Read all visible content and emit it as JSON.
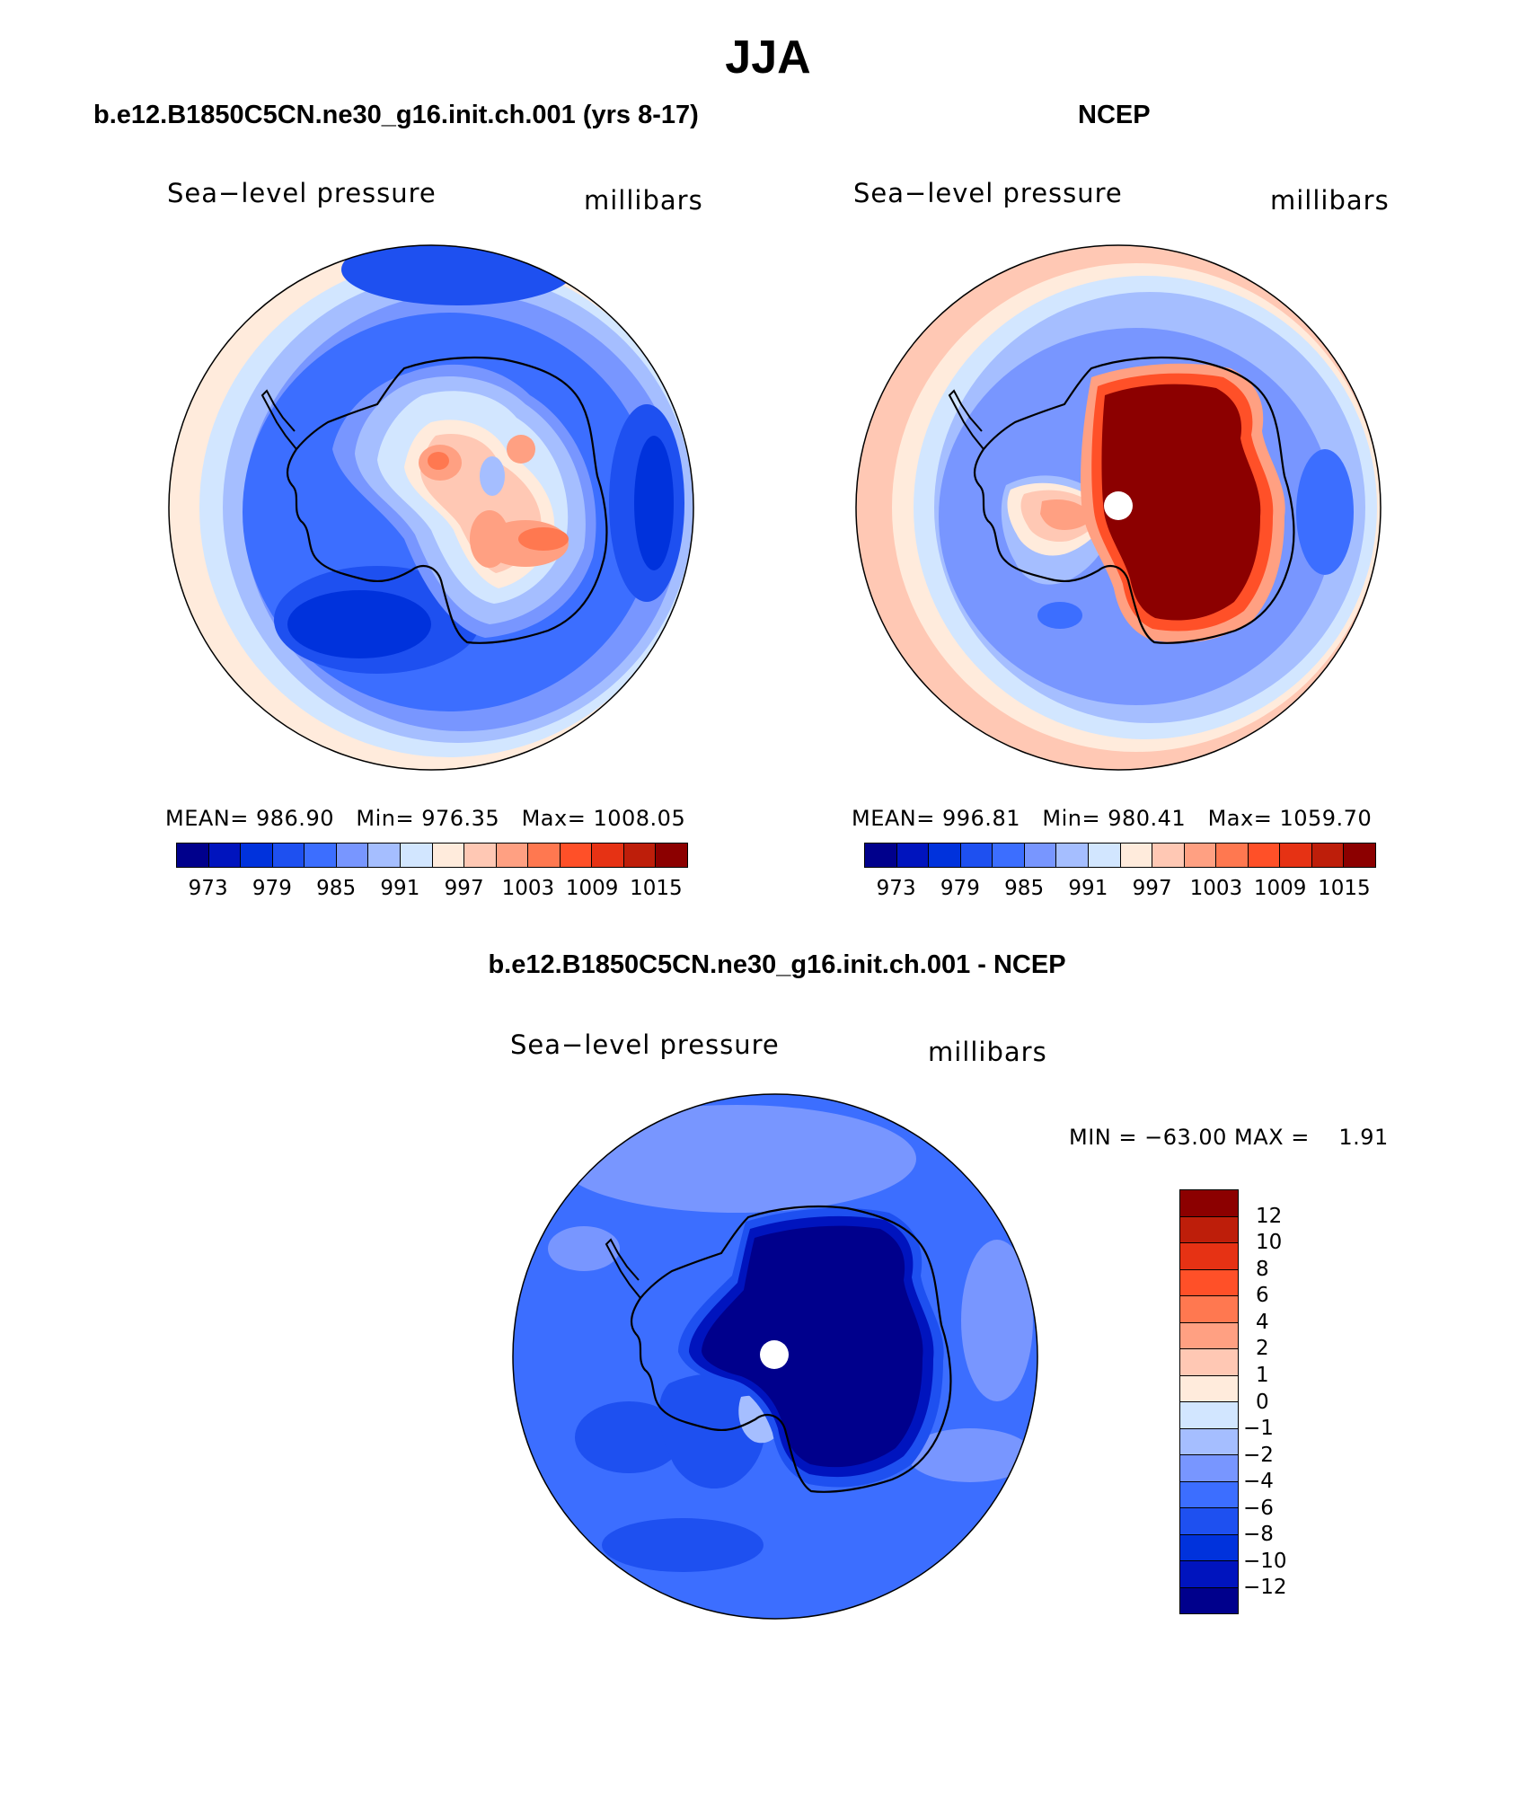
{
  "title": "JJA",
  "colors": {
    "model_ncep_scale": [
      "#00008c",
      "#0014be",
      "#0032dc",
      "#1e50f0",
      "#3c6eff",
      "#7896ff",
      "#a5beff",
      "#d2e6ff",
      "#ffebdc",
      "#ffc8b4",
      "#ffa082",
      "#ff7850",
      "#ff5028",
      "#e63214",
      "#be1e0a",
      "#8c0000"
    ],
    "diff_scale_top_to_bottom": [
      "#8c0000",
      "#be1e0a",
      "#e63214",
      "#ff5028",
      "#ff7850",
      "#ffa082",
      "#ffc8b4",
      "#ffebdc",
      "#d2e6ff",
      "#a5beff",
      "#7896ff",
      "#3c6eff",
      "#1e50f0",
      "#0032dc",
      "#0014be",
      "#00008c"
    ]
  },
  "panels": [
    {
      "title": "b.e12.B1850C5CN.ne30_g16.init.ch.001 (yrs 8-17)",
      "variable": "Sea−level pressure",
      "units": "millibars",
      "stats": {
        "mean_label": "MEAN=",
        "mean": "986.90",
        "min_label": "Min=",
        "min": "976.35",
        "max_label": "Max=",
        "max": "1008.05"
      },
      "colorbar_ticks": [
        "973",
        "979",
        "985",
        "991",
        "997",
        "1003",
        "1009",
        "1015"
      ]
    },
    {
      "title": "NCEP",
      "variable": "Sea−level pressure",
      "units": "millibars",
      "stats": {
        "mean_label": "MEAN=",
        "mean": "996.81",
        "min_label": "Min=",
        "min": "980.41",
        "max_label": "Max=",
        "max": "1059.70"
      },
      "colorbar_ticks": [
        "973",
        "979",
        "985",
        "991",
        "997",
        "1003",
        "1009",
        "1015"
      ]
    },
    {
      "title": "b.e12.B1850C5CN.ne30_g16.init.ch.001 - NCEP",
      "variable": "Sea−level pressure",
      "units": "millibars",
      "minmax_text": "MIN = −63.00 MAX =    1.91",
      "colorbar_ticks": [
        "12",
        "10",
        "8",
        "6",
        "4",
        "2",
        "1",
        "0",
        "−1",
        "−2",
        "−4",
        "−6",
        "−8",
        "−10",
        "−12"
      ]
    }
  ]
}
